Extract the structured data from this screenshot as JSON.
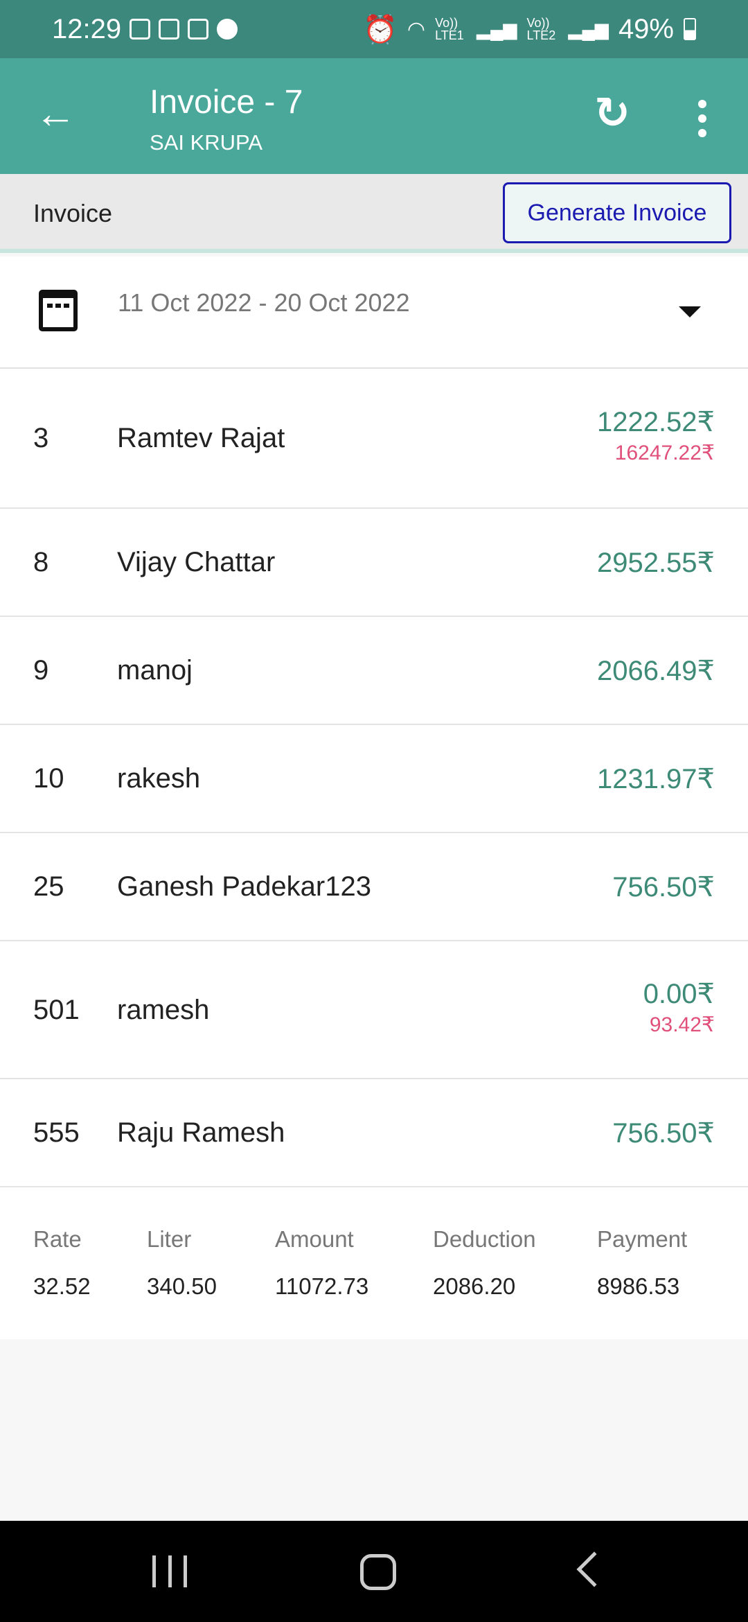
{
  "status_bar": {
    "time": "12:29",
    "battery": "49%",
    "network1": "Vo)) LTE1",
    "network2": "Vo)) LTE2"
  },
  "app_bar": {
    "title": "Invoice - 7",
    "subtitle": "SAI KRUPA"
  },
  "subheader": {
    "label": "Invoice",
    "generate_label": "Generate Invoice"
  },
  "date_range": {
    "value": "11 Oct 2022 - 20 Oct 2022"
  },
  "rows": [
    {
      "num": "3",
      "name": "Ramtev Rajat",
      "amount": "1222.52₹",
      "secondary": "16247.22₹"
    },
    {
      "num": "8",
      "name": "Vijay Chattar",
      "amount": "2952.55₹",
      "secondary": ""
    },
    {
      "num": "9",
      "name": "manoj",
      "amount": "2066.49₹",
      "secondary": ""
    },
    {
      "num": "10",
      "name": "rakesh",
      "amount": "1231.97₹",
      "secondary": ""
    },
    {
      "num": "25",
      "name": "Ganesh Padekar123",
      "amount": "756.50₹",
      "secondary": ""
    },
    {
      "num": "501",
      "name": "ramesh",
      "amount": "0.00₹",
      "secondary": "93.42₹"
    },
    {
      "num": "555",
      "name": "Raju Ramesh",
      "amount": "756.50₹",
      "secondary": ""
    }
  ],
  "summary": [
    {
      "label": "Rate",
      "value": "32.52"
    },
    {
      "label": "Liter",
      "value": "340.50"
    },
    {
      "label": "Amount",
      "value": "11072.73"
    },
    {
      "label": "Deduction",
      "value": "2086.20"
    },
    {
      "label": "Payment",
      "value": "8986.53"
    }
  ],
  "colors": {
    "status_bar": "#3d887d",
    "app_bar": "#4aa89b",
    "amount": "#3d8a76",
    "secondary_amount": "#e0507a",
    "button": "#1a1ab0"
  }
}
